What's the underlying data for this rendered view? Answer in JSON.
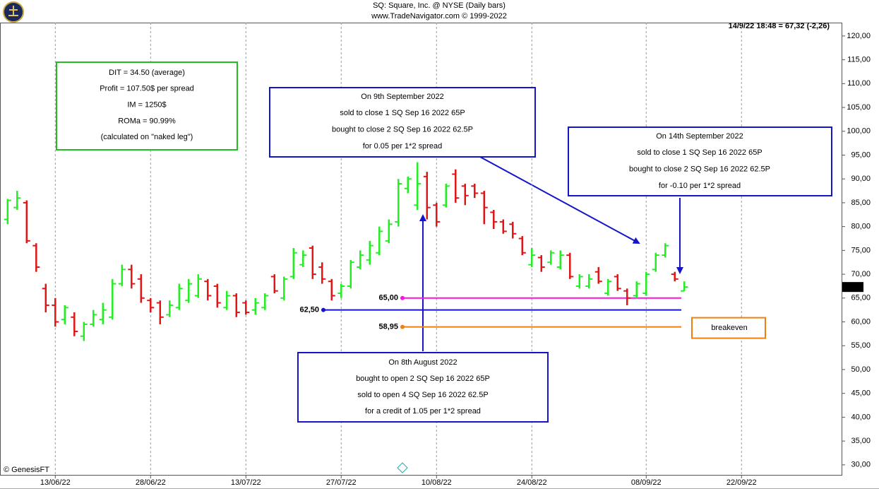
{
  "chart_data": {
    "type": "ohlc",
    "title": "SQ:  Square, Inc. @ NYSE  (Daily bars)",
    "subtitle": "www.TradeNavigator.com © 1999-2022",
    "quote": "14/9/22 18:48 = 67,32 (-2,26)",
    "credit": "© GenesisFT",
    "up_color": "#22ee22",
    "down_color": "#e01515",
    "open": [
      81.5,
      84,
      85,
      76,
      67,
      63.5,
      60.5,
      61,
      57,
      59.5,
      60.5,
      61,
      68,
      71,
      69,
      64.5,
      64,
      61.5,
      63,
      64.5,
      65.5,
      68.5,
      67.5,
      63,
      65.5,
      64,
      62.5,
      63,
      69.5,
      65,
      69.5,
      72,
      75.5,
      71.5,
      68.5,
      66,
      67.5,
      71.5,
      73,
      74.5,
      77,
      81,
      88,
      84.5,
      90.5,
      84.5,
      84.5,
      91,
      88.5,
      88.5,
      87,
      83,
      81,
      80.5,
      77.5,
      72,
      73.5,
      72.5,
      71.5,
      74,
      67.5,
      67.5,
      70.5,
      66,
      69.5,
      66.5,
      65.5,
      66,
      71,
      74,
      70,
      66.5
    ],
    "high": [
      85.8,
      87.5,
      85.5,
      76.5,
      68,
      65,
      63.5,
      62,
      60,
      62.5,
      64,
      69,
      72,
      72,
      70,
      65,
      64.5,
      64.5,
      68,
      69,
      70,
      69,
      68,
      66.5,
      66,
      64.5,
      65,
      66,
      70,
      69.5,
      75.5,
      75,
      76,
      72.5,
      69,
      68,
      73,
      75,
      77,
      80,
      81.5,
      90,
      90.5,
      93.5,
      91.5,
      85,
      89,
      92,
      89,
      89,
      87.5,
      83.5,
      81.5,
      81,
      78,
      75.5,
      74,
      75,
      75,
      74.5,
      70,
      70,
      71.5,
      69,
      70,
      67,
      68.5,
      70.5,
      74.5,
      76.5,
      70.5,
      68.5
    ],
    "low": [
      80.5,
      83.5,
      76.5,
      70.5,
      62,
      59,
      59.5,
      57,
      56,
      59,
      59.5,
      60.5,
      67.5,
      67,
      64,
      62,
      59.5,
      61,
      62.5,
      64,
      65,
      64.5,
      63,
      62.5,
      61,
      61.5,
      61.5,
      62.5,
      66,
      64.5,
      69,
      71.5,
      69,
      68,
      64.5,
      65,
      67,
      71,
      72,
      74,
      76.5,
      80,
      87,
      83.5,
      81.5,
      80,
      84,
      85,
      84.5,
      86,
      80.5,
      79.5,
      78.5,
      77.5,
      74,
      71.5,
      70.5,
      72,
      71,
      69,
      67,
      67,
      68,
      65.5,
      66.5,
      63.5,
      65,
      65.5,
      70.5,
      73.5,
      68.5,
      66.5
    ],
    "close": [
      85.5,
      86,
      77,
      71.5,
      63.5,
      60,
      63,
      58,
      59.5,
      61.5,
      62.5,
      68,
      71,
      68,
      65,
      63,
      61,
      63.5,
      67,
      68,
      69,
      65.5,
      64,
      65.5,
      62,
      62,
      64,
      65.5,
      66.5,
      69,
      74.5,
      74,
      70,
      69,
      65.5,
      67.5,
      72.5,
      74,
      76,
      79,
      80.5,
      89,
      90,
      89,
      84,
      81,
      88.5,
      86,
      86.5,
      87,
      84,
      81,
      79,
      78.5,
      74.5,
      74,
      71.5,
      74.5,
      74,
      69.5,
      69.5,
      69,
      68.5,
      68.5,
      67,
      65,
      68,
      70,
      74,
      76,
      69,
      67.32
    ],
    "xlim": [
      -0.8,
      87.5
    ],
    "xticks": [
      {
        "value": 5,
        "label": "13/06/22"
      },
      {
        "value": 15,
        "label": "28/06/22"
      },
      {
        "value": 25,
        "label": "13/07/22"
      },
      {
        "value": 35,
        "label": "27/07/22"
      },
      {
        "value": 45,
        "label": "10/08/22"
      },
      {
        "value": 55,
        "label": "24/08/22"
      },
      {
        "value": 67,
        "label": "08/09/22"
      },
      {
        "value": 77,
        "label": "22/09/22"
      }
    ],
    "xgrid": true,
    "ylim": [
      27.9,
      122.8
    ],
    "yticks": [
      {
        "value": 30,
        "label": "30,00"
      },
      {
        "value": 35,
        "label": "35,00"
      },
      {
        "value": 40,
        "label": "40,00"
      },
      {
        "value": 45,
        "label": "45,00"
      },
      {
        "value": 50,
        "label": "50,00"
      },
      {
        "value": 55,
        "label": "55,00"
      },
      {
        "value": 60,
        "label": "60,00"
      },
      {
        "value": 65,
        "label": "65,00"
      },
      {
        "value": 70,
        "label": "70,00"
      },
      {
        "value": 75,
        "label": "75,00"
      },
      {
        "value": 80,
        "label": "80,00"
      },
      {
        "value": 85,
        "label": "85,00"
      },
      {
        "value": 90,
        "label": "90,00"
      },
      {
        "value": 95,
        "label": "95,00"
      },
      {
        "value": 100,
        "label": "100,00"
      },
      {
        "value": 105,
        "label": "105,00"
      },
      {
        "value": 110,
        "label": "110,00"
      },
      {
        "value": 115,
        "label": "115,00"
      },
      {
        "value": 120,
        "label": "120,00"
      }
    ],
    "last": {
      "value": 67.32,
      "label": "67,32"
    },
    "levels": [
      {
        "value": 65,
        "label": "65,00",
        "color": "#ff11dd"
      },
      {
        "value": 62.5,
        "label": "62,50",
        "color": "#1414c8"
      },
      {
        "value": 58.95,
        "label": "58,95",
        "color": "#f07f10",
        "note": "breakeven"
      }
    ],
    "annotations": [
      {
        "color": "#22bb22",
        "lines": [
          "DIT = 34.50 (average)",
          "Profit = 107.50$ per spread",
          "IM = 1250$",
          "ROMa = 90.99%",
          "(calculated on \"naked leg\")"
        ]
      },
      {
        "color": "#1414c8",
        "lines": [
          "On 9th September 2022",
          "sold to close 1 SQ Sep 16 2022 65P",
          "bought to close 2 SQ Sep 16 2022 62.5P",
          "for 0.05 per 1*2 spread"
        ]
      },
      {
        "color": "#1414c8",
        "lines": [
          "On 14th September 2022",
          "sold to close 1 SQ Sep 16 2022 65P",
          "bought to close 2 SQ Sep 16 2022 62.5P",
          "for -0.10 per 1*2 spread"
        ]
      },
      {
        "color": "#1414c8",
        "lines": [
          "On 8th August 2022",
          "bought to open 2 SQ Sep 16 2022 65P",
          "sold to open 4 SQ Sep 16 2022 62.5P",
          "for a credit of 1.05 per 1*2 spread"
        ]
      }
    ]
  }
}
